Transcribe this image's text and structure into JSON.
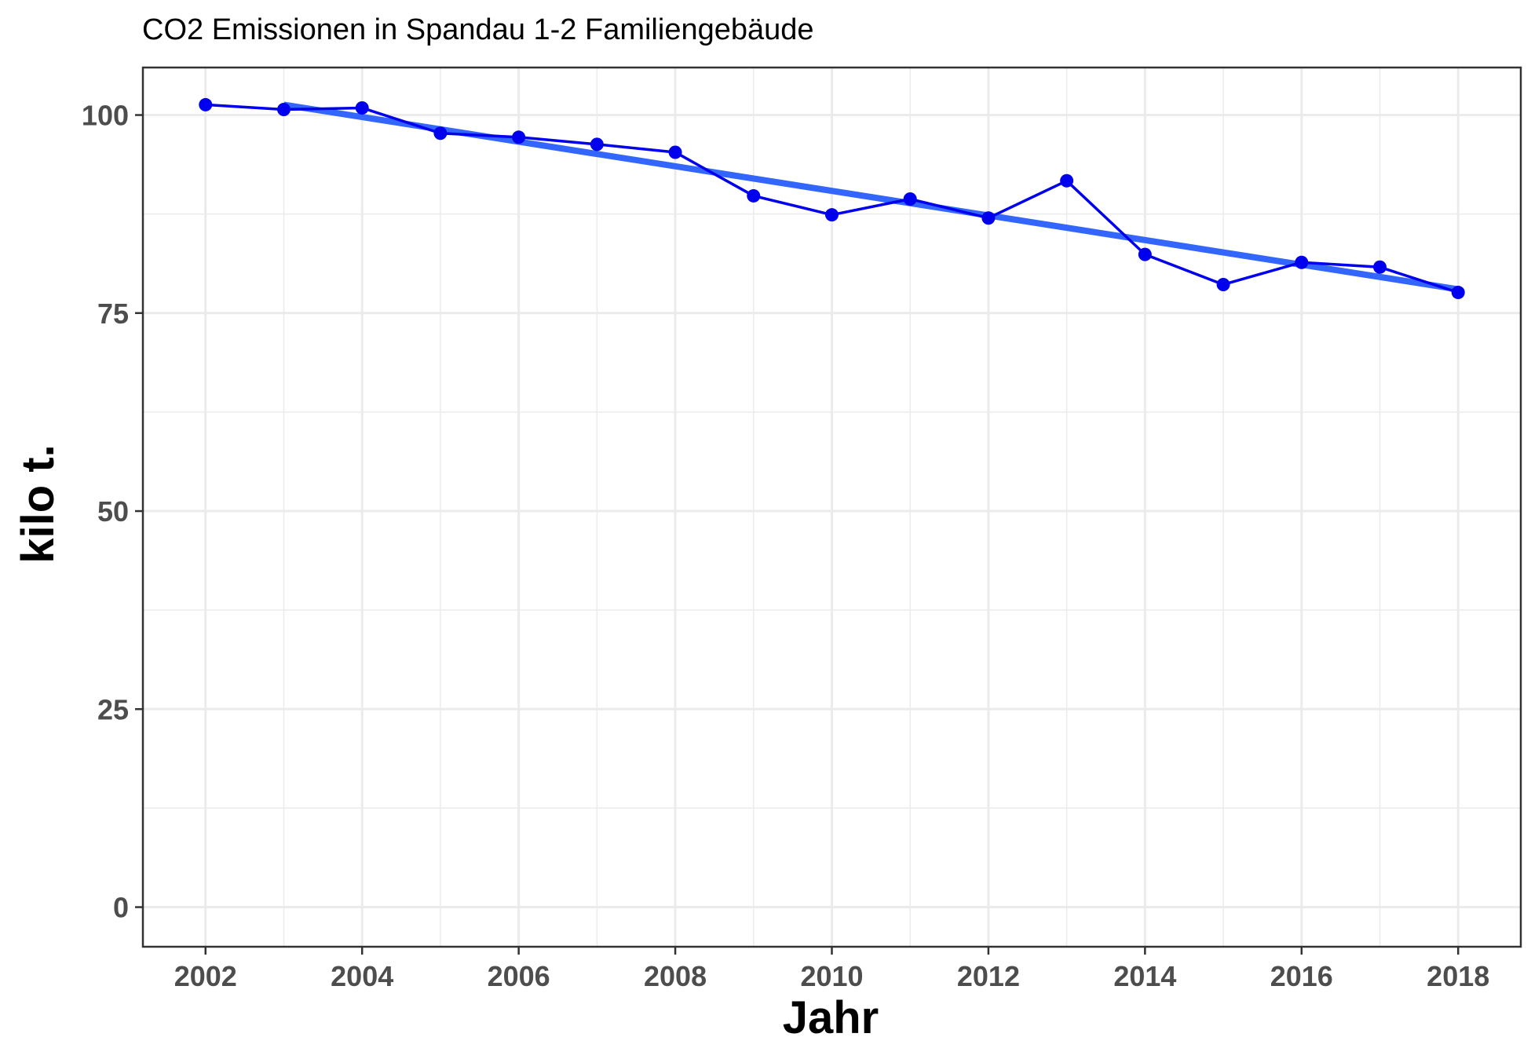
{
  "chart_data": {
    "type": "line",
    "title": "CO2 Emissionen in Spandau 1-2 Familiengebäude",
    "xlabel": "Jahr",
    "ylabel": "kilo t.",
    "xlim": [
      2001.2,
      2018.8
    ],
    "ylim": [
      -5,
      106
    ],
    "x_ticks": [
      2002,
      2004,
      2006,
      2008,
      2010,
      2012,
      2014,
      2016,
      2018
    ],
    "y_ticks": [
      0,
      25,
      50,
      75,
      100
    ],
    "grid": true,
    "series": [
      {
        "color": "#0000ee",
        "x": [
          2002,
          2003,
          2004,
          2005,
          2006,
          2007,
          2008,
          2009,
          2010,
          2011,
          2012,
          2013,
          2014,
          2015,
          2016,
          2017,
          2018
        ],
        "values": [
          101.3,
          100.7,
          100.9,
          97.7,
          97.2,
          96.3,
          95.3,
          89.8,
          87.4,
          89.4,
          87.0,
          91.7,
          82.4,
          78.6,
          81.4,
          80.8,
          77.6
        ]
      }
    ],
    "trend": {
      "color": "#3366ff",
      "x": [
        2003,
        2018
      ],
      "values": [
        101.3,
        78.0
      ]
    }
  }
}
